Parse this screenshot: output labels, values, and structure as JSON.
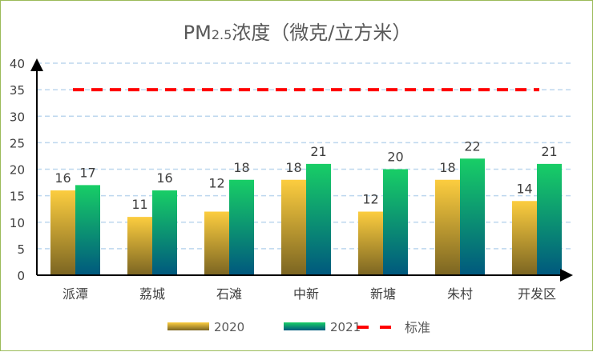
{
  "chart_data": {
    "type": "bar",
    "title": {
      "prefix": "PM",
      "sub": "2.5",
      "suffix": "浓度（微克/立方米）"
    },
    "categories": [
      "派潭",
      "荔城",
      "石滩",
      "中新",
      "新塘",
      "朱村",
      "开发区"
    ],
    "series": [
      {
        "name": "2020",
        "values": [
          16,
          11,
          12,
          18,
          12,
          18,
          14
        ],
        "color_top": "#FCCD3F",
        "color_bottom": "#7B6522"
      },
      {
        "name": "2021",
        "values": [
          17,
          16,
          18,
          21,
          20,
          22,
          21
        ],
        "color_top": "#18CE66",
        "color_bottom": "#00587E"
      }
    ],
    "reference_line": {
      "name": "标准",
      "value": 35,
      "color": "#FF0000",
      "style": "dashed"
    },
    "ylim": [
      0,
      40
    ],
    "yticks": [
      0,
      5,
      10,
      15,
      20,
      25,
      30,
      35,
      40
    ],
    "grid": true,
    "grid_color": "#BDD7EE",
    "legend_position": "bottom",
    "data_labels": true
  }
}
